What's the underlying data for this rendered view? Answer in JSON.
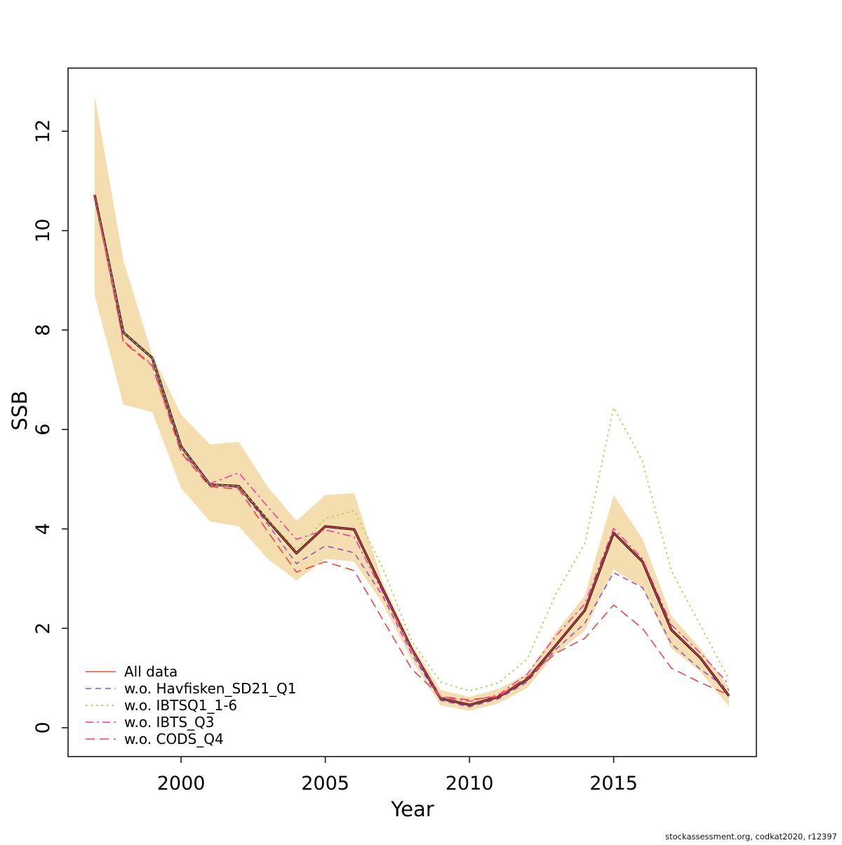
{
  "caption": "stockassessment.org, codkat2020, r12397",
  "chart_data": {
    "type": "line",
    "title": "",
    "xlabel": "Year",
    "ylabel": "SSB",
    "grid": false,
    "legend_position": "bottom-left",
    "x": [
      1997,
      1998,
      1999,
      2000,
      2001,
      2002,
      2003,
      2004,
      2005,
      2006,
      2007,
      2008,
      2009,
      2010,
      2011,
      2012,
      2013,
      2014,
      2015,
      2016,
      2017,
      2018,
      2019
    ],
    "x_ticks": [
      2000,
      2005,
      2010,
      2015
    ],
    "y_ticks": [
      0,
      2,
      4,
      6,
      8,
      10,
      12
    ],
    "xlim": [
      1996.08,
      2019.95
    ],
    "ylim": [
      -0.58,
      13.27
    ],
    "band": {
      "name": "confidence-band",
      "color": "#f4ddae",
      "upper": [
        12.72,
        9.4,
        7.5,
        6.3,
        5.7,
        5.75,
        4.85,
        4.16,
        4.68,
        4.72,
        2.92,
        1.69,
        0.76,
        0.62,
        0.78,
        1.08,
        1.93,
        2.66,
        4.68,
        3.8,
        2.25,
        1.6,
        0.8
      ],
      "lower": [
        8.7,
        6.5,
        6.35,
        4.82,
        4.15,
        4.05,
        3.4,
        2.96,
        3.4,
        3.34,
        2.49,
        1.36,
        0.45,
        0.34,
        0.49,
        0.8,
        1.5,
        1.95,
        3.18,
        2.82,
        1.6,
        1.13,
        0.43
      ]
    },
    "series": [
      {
        "name": "base fit",
        "color": "#140a10",
        "style": "solid",
        "width": 3.4,
        "in_legend": false,
        "values": [
          10.72,
          7.95,
          7.44,
          5.66,
          4.89,
          4.86,
          4.17,
          3.51,
          4.05,
          3.99,
          2.78,
          1.58,
          0.59,
          0.46,
          0.62,
          0.97,
          1.66,
          2.36,
          3.92,
          3.34,
          1.97,
          1.41,
          0.64
        ]
      },
      {
        "name": "All data",
        "color": "#ef4a43",
        "style": "solid",
        "width": 1.4,
        "in_legend": true,
        "values": [
          10.72,
          7.95,
          7.44,
          5.66,
          4.89,
          4.86,
          4.17,
          3.51,
          4.05,
          3.99,
          2.78,
          1.58,
          0.59,
          0.46,
          0.62,
          0.97,
          1.66,
          2.36,
          3.92,
          3.34,
          1.97,
          1.41,
          0.64
        ]
      },
      {
        "name": "w.o. Havfisken_SD21_Q1",
        "color": "#9152be",
        "style": "dashed",
        "width": 1.6,
        "in_legend": true,
        "values": [
          10.72,
          7.95,
          7.44,
          5.66,
          4.89,
          4.83,
          4.1,
          3.3,
          3.66,
          3.52,
          2.64,
          1.48,
          0.55,
          0.42,
          0.58,
          0.92,
          1.58,
          2.1,
          3.12,
          2.82,
          1.69,
          1.18,
          0.76
        ]
      },
      {
        "name": "w.o. IBTSQ1_1-6",
        "color": "#9ed13b",
        "style": "dotted",
        "width": 1.7,
        "in_legend": true,
        "values": [
          10.72,
          7.95,
          7.44,
          5.66,
          4.89,
          4.86,
          4.2,
          3.58,
          4.21,
          4.37,
          3.2,
          1.74,
          0.92,
          0.74,
          0.9,
          1.38,
          2.7,
          3.7,
          6.44,
          5.36,
          3.16,
          2.07,
          0.97
        ]
      },
      {
        "name": "w.o. IBTS_Q3",
        "color": "#ee3ca6",
        "style": "dashdot",
        "width": 1.6,
        "in_legend": true,
        "values": [
          10.72,
          7.78,
          7.3,
          5.55,
          4.91,
          5.13,
          4.45,
          3.79,
          3.98,
          3.84,
          2.71,
          1.55,
          0.62,
          0.53,
          0.66,
          1.08,
          1.85,
          2.49,
          4.01,
          3.4,
          2.07,
          1.51,
          0.87
        ]
      },
      {
        "name": "w.o. CODS_Q4",
        "color": "#ef453f",
        "style": "longdash",
        "width": 1.6,
        "in_legend": true,
        "values": [
          10.72,
          7.76,
          7.28,
          5.53,
          4.85,
          4.8,
          3.95,
          3.13,
          3.34,
          3.16,
          2.17,
          1.18,
          0.63,
          0.56,
          0.63,
          1.02,
          1.5,
          1.8,
          2.47,
          2.0,
          1.2,
          0.91,
          0.66
        ]
      }
    ]
  }
}
